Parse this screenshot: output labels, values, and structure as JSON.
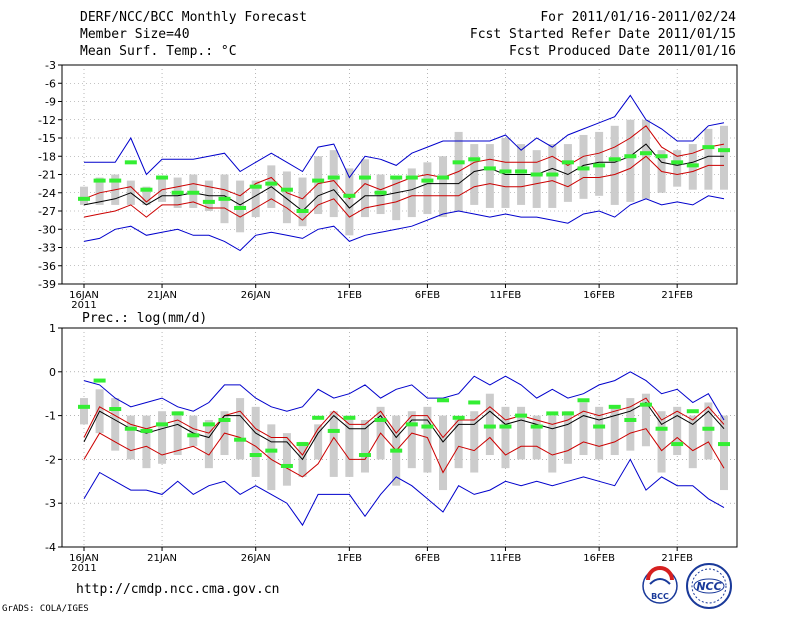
{
  "header": {
    "title": "DERF/NCC/BCC Monthly Forecast",
    "member_size": "Member Size=40",
    "variable": "Mean Surf. Temp.: °C",
    "period": "For 2011/01/16-2011/02/24",
    "started": "Fcst Started Refer Date 2011/01/15",
    "produced": "Fcst Produced Date 2011/01/16"
  },
  "footer": {
    "url": "http://cmdp.ncc.cma.gov.cn",
    "grads": "GrADS: COLA/IGES"
  },
  "logos": {
    "bcc": "BCC",
    "ncc": "NCC"
  },
  "colors": {
    "ensemble_mean": "#000000",
    "spread": "#cc0000",
    "extremes": "#0000cc",
    "range_box": "#cccccc",
    "observed": "#33ee33"
  },
  "chart_data": [
    {
      "type": "line",
      "title": "Mean Surf. Temp.: °C",
      "xlabel": "",
      "ylabel": "°C",
      "ylim": [
        -39,
        -3
      ],
      "yticks": [
        -3,
        -6,
        -9,
        -12,
        -15,
        -18,
        -21,
        -24,
        -27,
        -30,
        -33,
        -36,
        -39
      ],
      "xtick_labels": [
        {
          "day": 1,
          "label": "16JAN",
          "sub": "2011"
        },
        {
          "day": 6,
          "label": "21JAN"
        },
        {
          "day": 11,
          "label": "26JAN"
        },
        {
          "day": 17,
          "label": "1FEB"
        },
        {
          "day": 22,
          "label": "6FEB"
        },
        {
          "day": 27,
          "label": "11FEB"
        },
        {
          "day": 32,
          "label": "16FEB"
        },
        {
          "day": 37,
          "label": "21FEB"
        }
      ],
      "days": 40,
      "series": [
        {
          "name": "max",
          "values": [
            -19,
            -19,
            -19,
            -15,
            -21,
            -18.5,
            -18.5,
            -18.5,
            -18,
            -17.5,
            -20.5,
            -19,
            -17.5,
            -19,
            -20.5,
            -16.5,
            -16,
            -21.5,
            -18,
            -18.5,
            -19.5,
            -17.5,
            -16.5,
            -15.5,
            -15.5,
            -15.5,
            -15.5,
            -14.5,
            -17,
            -15,
            -16.5,
            -14.5,
            -13.5,
            -12.5,
            -11.5,
            -8,
            -12,
            -13.5,
            -15.5,
            -15.5,
            -13,
            -12.5
          ]
        },
        {
          "name": "upper",
          "values": [
            -25,
            -24,
            -23.5,
            -23,
            -25.5,
            -23.5,
            -23,
            -22.5,
            -23,
            -23.5,
            -24.5,
            -22.5,
            -21.5,
            -24,
            -25,
            -22.5,
            -22,
            -25,
            -22.5,
            -23.5,
            -22.5,
            -21.5,
            -21,
            -21.5,
            -20.5,
            -19,
            -18.5,
            -19,
            -19,
            -19,
            -18,
            -19.5,
            -18,
            -17.5,
            -16.5,
            -15,
            -13,
            -16.5,
            -18,
            -17.5,
            -16.5,
            -16
          ]
        },
        {
          "name": "mean",
          "values": [
            -26,
            -25.5,
            -25,
            -24,
            -26,
            -24.5,
            -24.5,
            -24,
            -24.5,
            -24.5,
            -26,
            -24.5,
            -23,
            -25,
            -27,
            -24.5,
            -23.5,
            -26.5,
            -24.5,
            -24.5,
            -24,
            -23.5,
            -22.5,
            -22.5,
            -22.5,
            -20.5,
            -20,
            -21,
            -21,
            -21,
            -20,
            -21,
            -19.5,
            -19,
            -19,
            -18,
            -16,
            -19,
            -19.5,
            -19,
            -18,
            -18
          ]
        },
        {
          "name": "lower",
          "values": [
            -28,
            -27.5,
            -27,
            -26,
            -28,
            -26,
            -26,
            -25.5,
            -26.5,
            -26.5,
            -28,
            -26.5,
            -25,
            -26.5,
            -28.5,
            -26,
            -25,
            -28,
            -26.5,
            -26,
            -25.5,
            -24.5,
            -24.5,
            -24.5,
            -24.5,
            -23,
            -22.5,
            -23,
            -23,
            -22.5,
            -22,
            -23,
            -21.5,
            -21.5,
            -21,
            -20,
            -18,
            -20.5,
            -21,
            -20.5,
            -19.5,
            -19.5
          ]
        },
        {
          "name": "min",
          "values": [
            -32,
            -31.5,
            -30,
            -29.5,
            -31,
            -30.5,
            -30,
            -31,
            -31,
            -32,
            -33.5,
            -31,
            -30.5,
            -31,
            -31.5,
            -30,
            -29.5,
            -32,
            -31,
            -30.5,
            -30,
            -29.5,
            -28.5,
            -27.5,
            -27,
            -27.5,
            -28,
            -27.5,
            -28,
            -28,
            -28.5,
            -29,
            -27.5,
            -27,
            -28,
            -26,
            -25,
            -26,
            -25.5,
            -26,
            -24.5,
            -25
          ]
        },
        {
          "name": "box_low",
          "values": [
            -26,
            -26,
            -26,
            -26,
            -26,
            -25.5,
            -26.5,
            -26.5,
            -27,
            -29,
            -30.5,
            -28,
            -26.5,
            -29,
            -29.5,
            -27.5,
            -28,
            -31,
            -28,
            -27.5,
            -28.5,
            -28,
            -27.5,
            -28,
            -27,
            -26,
            -26.5,
            -26.5,
            -26,
            -26.5,
            -26.5,
            -25.5,
            -25,
            -24.5,
            -26,
            -25.5,
            -25,
            -24,
            -23,
            -23.5,
            -23.5,
            -23.5
          ]
        },
        {
          "name": "box_high",
          "values": [
            -23,
            -21.5,
            -21,
            -22,
            -23,
            -21.5,
            -21.5,
            -21,
            -22,
            -21,
            -22,
            -22,
            -19.5,
            -20.5,
            -21.5,
            -18,
            -17,
            -20,
            -18.5,
            -21,
            -21.5,
            -20,
            -19,
            -18,
            -14,
            -16,
            -16,
            -15,
            -16,
            -17,
            -16,
            -16,
            -14.5,
            -14,
            -13,
            -12,
            -12,
            -17,
            -17,
            -16,
            -13.5,
            -13
          ]
        },
        {
          "name": "observed",
          "values": [
            -25,
            -22,
            -22,
            -19,
            -23.5,
            -21.5,
            -24,
            -24,
            -25.5,
            -25,
            -26.5,
            -23,
            -22.5,
            -23.5,
            -27,
            -22,
            -21.5,
            -24.5,
            -21.5,
            -24,
            -21.5,
            -21.5,
            -22,
            -21.5,
            -19,
            -18.5,
            -20,
            -20.5,
            -20.5,
            -21,
            -21,
            -19,
            -20,
            -19.5,
            -18.5,
            -18,
            -17.5,
            -18,
            -19,
            -19.5,
            -16.5,
            -17
          ]
        }
      ]
    },
    {
      "type": "line",
      "title": "Prec.: log(mm/d)",
      "xlabel": "",
      "ylabel": "log(mm/d)",
      "ylim": [
        -4,
        1
      ],
      "yticks": [
        1,
        0,
        -1,
        -2,
        -3,
        -4
      ],
      "xtick_labels": [
        {
          "day": 1,
          "label": "16JAN",
          "sub": "2011"
        },
        {
          "day": 6,
          "label": "21JAN"
        },
        {
          "day": 11,
          "label": "26JAN"
        },
        {
          "day": 17,
          "label": "1FEB"
        },
        {
          "day": 22,
          "label": "6FEB"
        },
        {
          "day": 27,
          "label": "11FEB"
        },
        {
          "day": 32,
          "label": "16FEB"
        },
        {
          "day": 37,
          "label": "21FEB"
        }
      ],
      "days": 40,
      "series": [
        {
          "name": "max",
          "values": [
            -0.2,
            -0.3,
            -0.6,
            -0.8,
            -0.7,
            -0.6,
            -0.8,
            -0.9,
            -0.7,
            -0.3,
            -0.3,
            -0.6,
            -0.8,
            -0.9,
            -0.8,
            -0.4,
            -0.6,
            -0.5,
            -0.3,
            -0.6,
            -0.4,
            -0.3,
            -0.6,
            -0.6,
            -0.5,
            -0.1,
            -0.3,
            -0.1,
            -0.3,
            -0.6,
            -0.4,
            -0.6,
            -0.5,
            -0.3,
            -0.2,
            0.0,
            -0.2,
            -0.5,
            -0.4,
            -0.7,
            -0.5,
            -1.1
          ]
        },
        {
          "name": "upper",
          "values": [
            -1.5,
            -0.8,
            -1.0,
            -1.2,
            -1.3,
            -1.2,
            -1.1,
            -1.3,
            -1.4,
            -1.0,
            -0.9,
            -1.3,
            -1.5,
            -1.5,
            -1.9,
            -1.3,
            -0.9,
            -1.2,
            -1.2,
            -0.9,
            -1.4,
            -1.0,
            -1.0,
            -1.5,
            -1.1,
            -1.1,
            -0.8,
            -1.1,
            -1.0,
            -1.1,
            -1.2,
            -1.1,
            -0.9,
            -1.0,
            -0.9,
            -0.8,
            -0.6,
            -1.1,
            -0.9,
            -1.1,
            -0.8,
            -1.2
          ]
        },
        {
          "name": "mean",
          "values": [
            -1.6,
            -0.9,
            -1.1,
            -1.3,
            -1.4,
            -1.3,
            -1.2,
            -1.4,
            -1.5,
            -1.0,
            -1.0,
            -1.4,
            -1.6,
            -1.6,
            -2.0,
            -1.4,
            -1.0,
            -1.3,
            -1.3,
            -1.0,
            -1.5,
            -1.1,
            -1.1,
            -1.6,
            -1.2,
            -1.2,
            -0.9,
            -1.2,
            -1.1,
            -1.2,
            -1.3,
            -1.2,
            -1.0,
            -1.1,
            -1.0,
            -0.9,
            -0.7,
            -1.2,
            -1.0,
            -1.2,
            -0.9,
            -1.3
          ]
        },
        {
          "name": "lower",
          "values": [
            -2.0,
            -1.4,
            -1.6,
            -1.8,
            -1.7,
            -1.9,
            -1.8,
            -1.7,
            -1.9,
            -1.4,
            -1.5,
            -1.7,
            -2.0,
            -2.2,
            -2.4,
            -2.1,
            -1.5,
            -2.0,
            -2.0,
            -1.4,
            -1.8,
            -1.4,
            -1.5,
            -2.3,
            -1.7,
            -1.8,
            -1.5,
            -1.9,
            -1.7,
            -1.7,
            -1.9,
            -1.8,
            -1.6,
            -1.7,
            -1.6,
            -1.4,
            -1.3,
            -1.8,
            -1.5,
            -1.8,
            -1.6,
            -2.2
          ]
        },
        {
          "name": "min",
          "values": [
            -2.9,
            -2.3,
            -2.5,
            -2.7,
            -2.7,
            -2.8,
            -2.5,
            -2.8,
            -2.6,
            -2.5,
            -2.8,
            -2.6,
            -2.8,
            -3.0,
            -3.5,
            -2.8,
            -2.8,
            -2.8,
            -3.3,
            -2.8,
            -2.4,
            -2.6,
            -2.9,
            -3.2,
            -2.6,
            -2.8,
            -2.7,
            -2.5,
            -2.6,
            -2.5,
            -2.6,
            -2.5,
            -2.4,
            -2.5,
            -2.6,
            -2.0,
            -2.7,
            -2.4,
            -2.6,
            -2.6,
            -2.9,
            -3.1
          ]
        },
        {
          "name": "box_low",
          "values": [
            -1.2,
            -1.4,
            -1.8,
            -2.0,
            -2.2,
            -2.1,
            -1.9,
            -1.7,
            -2.2,
            -1.9,
            -2.0,
            -2.4,
            -2.7,
            -2.6,
            -2.4,
            -2.0,
            -2.4,
            -2.4,
            -2.3,
            -2.0,
            -2.6,
            -2.2,
            -2.3,
            -2.7,
            -2.2,
            -2.3,
            -1.9,
            -2.2,
            -2.0,
            -2.0,
            -2.3,
            -2.1,
            -1.9,
            -2.0,
            -1.9,
            -1.8,
            -1.7,
            -2.3,
            -1.9,
            -2.2,
            -2.0,
            -2.7
          ]
        },
        {
          "name": "box_high",
          "values": [
            -0.6,
            -0.4,
            -0.6,
            -1.0,
            -1.0,
            -0.9,
            -0.9,
            -1.0,
            -1.1,
            -0.9,
            -0.6,
            -0.8,
            -1.2,
            -1.4,
            -1.6,
            -1.2,
            -0.9,
            -1.0,
            -1.1,
            -0.8,
            -1.0,
            -0.9,
            -0.8,
            -1.0,
            -1.1,
            -0.9,
            -0.5,
            -0.8,
            -0.8,
            -1.0,
            -1.0,
            -0.9,
            -0.7,
            -0.8,
            -0.8,
            -0.6,
            -0.5,
            -0.9,
            -0.8,
            -1.0,
            -0.7,
            -1.0
          ]
        },
        {
          "name": "observed",
          "values": [
            -0.8,
            -0.2,
            -0.85,
            -1.3,
            -1.35,
            -1.2,
            -0.95,
            -1.45,
            -1.2,
            -1.1,
            -1.55,
            -1.9,
            -1.8,
            -2.15,
            -1.65,
            -1.05,
            -1.35,
            -1.05,
            -1.9,
            -1.1,
            -1.8,
            -1.2,
            -1.25,
            -0.65,
            -1.05,
            -0.7,
            -1.25,
            -1.25,
            -1.0,
            -1.25,
            -0.95,
            -0.95,
            -0.65,
            -1.25,
            -0.8,
            -1.1,
            -0.75,
            -1.3,
            -1.65,
            -0.9,
            -1.3,
            -1.65
          ]
        }
      ]
    }
  ]
}
